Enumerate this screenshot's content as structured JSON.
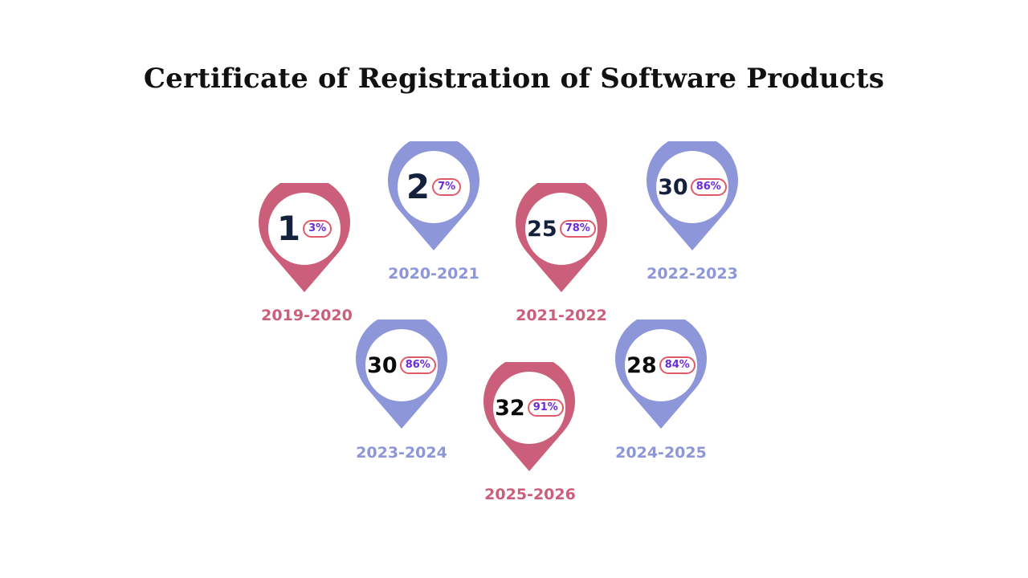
{
  "title": "Certificate of Registration of Software Products",
  "colors": {
    "pink": "#cb5f79",
    "blue": "#8d96d9",
    "percent_text": "#6a2bd9",
    "percent_border": "#e05a6a"
  },
  "items": [
    {
      "year": "2019-2020",
      "count": "1",
      "percent": "3%",
      "color": "pink"
    },
    {
      "year": "2020-2021",
      "count": "2",
      "percent": "7%",
      "color": "blue"
    },
    {
      "year": "2021-2022",
      "count": "25",
      "percent": "78%",
      "color": "pink"
    },
    {
      "year": "2022-2023",
      "count": "30",
      "percent": "86%",
      "color": "blue"
    },
    {
      "year": "2023-2024",
      "count": "30",
      "percent": "86%",
      "color": "blue"
    },
    {
      "year": "2025-2026",
      "count": "32",
      "percent": "91%",
      "color": "pink"
    },
    {
      "year": "2024-2025",
      "count": "28",
      "percent": "84%",
      "color": "blue"
    }
  ]
}
